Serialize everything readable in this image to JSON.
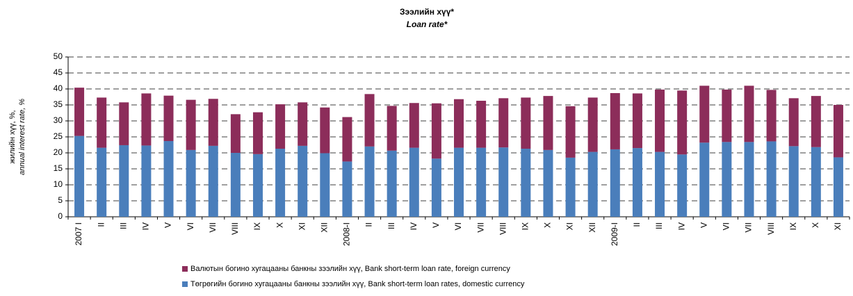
{
  "chart_data": {
    "type": "stacked_bar",
    "title": "Зээлийн хүү*",
    "subtitle": "Loan rate*",
    "y_label": "жилийн хүү, %,",
    "y_label_2": "annual interest rate, %",
    "categories": [
      "2007  I",
      "II",
      "III",
      "IV",
      "V",
      "VI",
      "VII",
      "VIII",
      "IX",
      "X",
      "XI",
      "XII",
      "2008-I",
      "II",
      "III",
      "IV",
      "V",
      "VI",
      "VII",
      "VIII",
      "IX",
      "X",
      "XI",
      "XII",
      "2009-I",
      "II",
      "III",
      "IV",
      "V",
      "VI",
      "VII",
      "VIII",
      "IX",
      "X",
      "XI"
    ],
    "series": [
      {
        "name": "Төгрөгийн богино хугацааны банкны зээлийн хүү, Bank short-term loan rates, domestic currency",
        "color": "#4a7ebb",
        "values": [
          25.3,
          21.6,
          22.4,
          22.3,
          23.7,
          20.9,
          22.2,
          20.0,
          19.6,
          21.3,
          22.2,
          19.9,
          17.3,
          22.0,
          20.7,
          21.6,
          18.2,
          21.6,
          21.6,
          21.7,
          21.3,
          20.9,
          18.5,
          20.3,
          21.1,
          21.5,
          20.3,
          19.5,
          23.2,
          23.4,
          23.4,
          23.6,
          22.1,
          21.8,
          18.6
        ]
      },
      {
        "name": "Валютын богино хугацааны банкны зээлийн хүү, Bank short-term loan rate, foreign currency",
        "color": "#8c2d5a",
        "values": [
          15.1,
          15.7,
          13.4,
          16.3,
          14.2,
          15.7,
          14.7,
          12.1,
          13.1,
          13.9,
          13.6,
          14.3,
          13.9,
          16.4,
          14.0,
          14.0,
          17.3,
          15.2,
          14.7,
          15.4,
          16.0,
          16.9,
          16.1,
          17.0,
          17.6,
          17.1,
          19.5,
          20.0,
          17.8,
          16.4,
          17.6,
          16.1,
          15.0,
          16.0,
          16.4
        ]
      }
    ],
    "ylim": [
      0,
      50
    ],
    "yticks": [
      0,
      5,
      10,
      15,
      20,
      25,
      30,
      35,
      40,
      45,
      50
    ],
    "grid": true
  }
}
